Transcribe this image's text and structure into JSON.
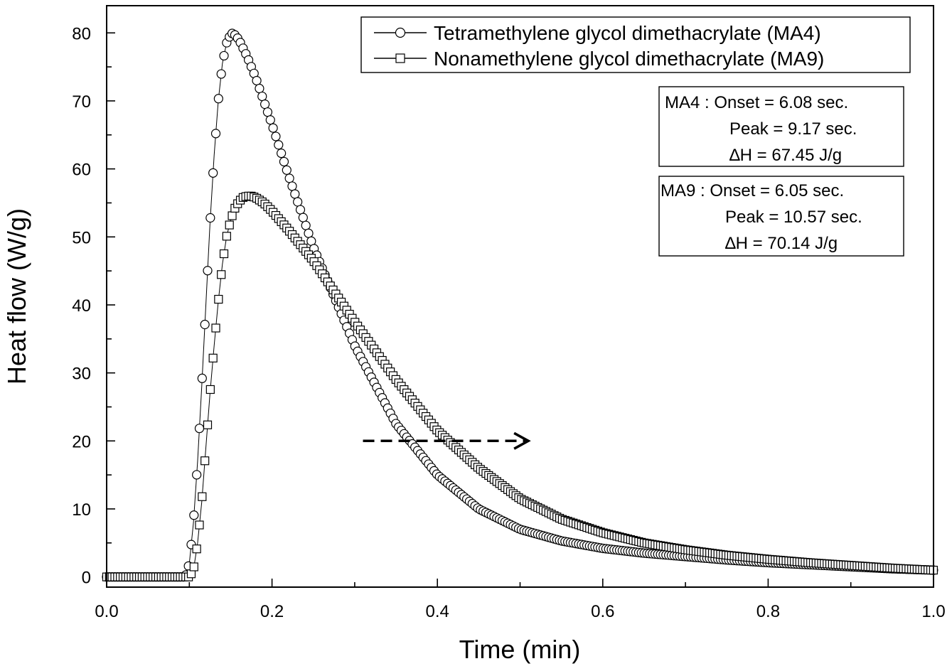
{
  "chart_data": {
    "type": "scatter",
    "xlabel": "Time (min)",
    "ylabel": "Heat flow (W/g)",
    "xlim": [
      0.0,
      1.0
    ],
    "ylim": [
      -1.5,
      84
    ],
    "xticks": [
      "0.0",
      "0.2",
      "0.4",
      "0.6",
      "0.8",
      "1.0"
    ],
    "yticks": [
      "0",
      "10",
      "20",
      "30",
      "40",
      "50",
      "60",
      "70",
      "80"
    ],
    "legend_position": "top-right",
    "series": [
      {
        "name": "Tetramethylene glycol dimethacrylate (MA4)",
        "marker": "circle",
        "x": [
          0.0,
          0.05,
          0.095,
          0.1,
          0.105,
          0.11,
          0.115,
          0.12,
          0.125,
          0.13,
          0.135,
          0.14,
          0.145,
          0.15,
          0.153,
          0.16,
          0.17,
          0.18,
          0.2,
          0.22,
          0.25,
          0.3,
          0.35,
          0.4,
          0.45,
          0.5,
          0.55,
          0.6,
          0.65,
          0.7,
          0.75,
          0.8,
          0.85,
          0.9,
          0.95,
          1.0
        ],
        "y": [
          0.0,
          0.0,
          0.0,
          2.0,
          8.0,
          17.0,
          28.0,
          40.0,
          52.0,
          62.0,
          70.0,
          75.5,
          78.5,
          79.8,
          80.0,
          79.0,
          76.5,
          73.5,
          66.5,
          59.0,
          48.5,
          34.0,
          22.5,
          15.0,
          10.0,
          7.0,
          5.3,
          4.2,
          3.5,
          3.0,
          2.5,
          2.1,
          1.8,
          1.5,
          1.2,
          1.0
        ]
      },
      {
        "name": "Nonamethylene glycol dimethacrylate (MA9)",
        "marker": "square",
        "x": [
          0.0,
          0.05,
          0.1,
          0.105,
          0.11,
          0.115,
          0.12,
          0.125,
          0.13,
          0.135,
          0.14,
          0.145,
          0.15,
          0.155,
          0.16,
          0.165,
          0.17,
          0.175,
          0.18,
          0.19,
          0.2,
          0.22,
          0.25,
          0.3,
          0.35,
          0.4,
          0.45,
          0.5,
          0.55,
          0.6,
          0.65,
          0.7,
          0.75,
          0.8,
          0.85,
          0.9,
          0.95,
          1.0
        ],
        "y": [
          0.0,
          0.0,
          0.0,
          1.0,
          5.0,
          11.0,
          19.0,
          27.0,
          34.0,
          40.5,
          46.0,
          50.0,
          52.5,
          54.2,
          55.2,
          55.8,
          56.0,
          56.0,
          55.8,
          55.0,
          53.8,
          51.0,
          46.5,
          37.5,
          29.0,
          21.5,
          16.0,
          11.5,
          8.5,
          6.5,
          5.0,
          4.0,
          3.2,
          2.6,
          2.1,
          1.7,
          1.3,
          1.0
        ]
      }
    ],
    "annotations": [
      {
        "lines": [
          "MA4 : Onset = 6.08 sec.",
          "Peak = 9.17 sec.",
          "∆H = 67.45 J/g"
        ]
      },
      {
        "lines": [
          "MA9 : Onset = 6.05 sec.",
          "Peak = 10.57 sec.",
          "∆H = 70.14 J/g"
        ]
      }
    ],
    "arrow": {
      "style": "dashed",
      "direction": "right",
      "x_start": 0.31,
      "x_end": 0.51,
      "y": 20
    }
  }
}
